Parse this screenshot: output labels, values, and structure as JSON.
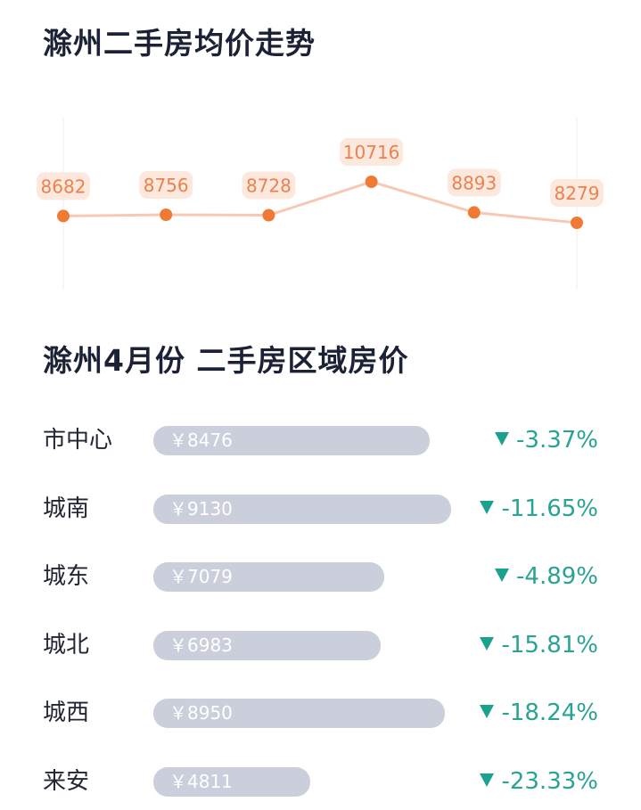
{
  "page": {
    "trend_title": "滁州二手房均价走势",
    "region_title": "滁州4月份 二手房区域房价"
  },
  "colors": {
    "line": "#f7c9b3",
    "point": "#f07a35",
    "label_bg": "#fde8de",
    "label_text": "#ea8250",
    "bar": "#cbcfdc",
    "decrease": "#29a392"
  },
  "chart_data": [
    {
      "type": "line",
      "title": "滁州二手房均价走势",
      "values": [
        8682,
        8756,
        8728,
        10716,
        8893,
        8279
      ],
      "data_labels": [
        "8682",
        "8756",
        "8728",
        "10716",
        "8893",
        "8279"
      ],
      "grid": false
    },
    {
      "type": "bar",
      "title": "滁州4月份 二手房区域房价",
      "categories": [
        "市中心",
        "城南",
        "城东",
        "城北",
        "城西",
        "来安"
      ],
      "values": [
        8476,
        9130,
        7079,
        6983,
        8950,
        4811
      ],
      "value_labels": [
        "￥8476",
        "￥9130",
        "￥7079",
        "￥6983",
        "￥8950",
        "￥4811"
      ],
      "changes": [
        "-3.37%",
        "-11.65%",
        "-4.89%",
        "-15.81%",
        "-18.24%",
        "-23.33%"
      ],
      "change_direction": [
        "down",
        "down",
        "down",
        "down",
        "down",
        "down"
      ],
      "change_icon": "triangle-down-icon"
    }
  ]
}
